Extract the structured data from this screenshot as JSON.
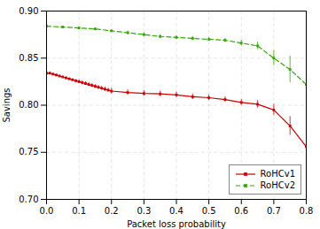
{
  "chart_data": {
    "type": "line",
    "xlabel": "Packet loss probability",
    "ylabel": "Savings",
    "xlim": [
      0,
      0.8
    ],
    "ylim": [
      0.7,
      0.9
    ],
    "xticks": [
      {
        "value": 0.0,
        "label": "0.0"
      },
      0.1,
      0.2,
      0.3,
      0.4,
      0.5,
      0.6,
      0.7,
      0.8
    ],
    "yticks": [
      {
        "value": 0.7,
        "label": "0.70"
      },
      0.75,
      {
        "value": 0.8,
        "label": "0.80"
      },
      0.85,
      {
        "value": 0.9,
        "label": "0.90"
      }
    ],
    "grid": true,
    "legend": "lower right",
    "series": [
      {
        "name": "RoHCv1",
        "color": "#cc0000",
        "marker": "square",
        "line_style": "solid",
        "x": [
          0.0,
          0.01,
          0.02,
          0.03,
          0.04,
          0.05,
          0.06,
          0.07,
          0.08,
          0.09,
          0.1,
          0.11,
          0.12,
          0.13,
          0.14,
          0.15,
          0.16,
          0.17,
          0.18,
          0.19,
          0.2,
          0.25,
          0.3,
          0.35,
          0.4,
          0.45,
          0.5,
          0.55,
          0.6,
          0.65,
          0.7,
          0.75,
          0.8
        ],
        "values": [
          0.834,
          0.834,
          0.833,
          0.832,
          0.831,
          0.83,
          0.829,
          0.828,
          0.827,
          0.826,
          0.825,
          0.824,
          0.823,
          0.822,
          0.821,
          0.82,
          0.819,
          0.818,
          0.817,
          0.816,
          0.815,
          0.8135,
          0.8125,
          0.812,
          0.811,
          0.809,
          0.808,
          0.806,
          0.803,
          0.801,
          0.795,
          0.778,
          0.756
        ],
        "yerr": [
          0.001,
          0.001,
          0.001,
          0.001,
          0.001,
          0.001,
          0.001,
          0.001,
          0.001,
          0.001,
          0.002,
          0.002,
          0.002,
          0.002,
          0.002,
          0.002,
          0.002,
          0.002,
          0.002,
          0.002,
          0.003,
          0.003,
          0.003,
          0.003,
          0.003,
          0.003,
          0.003,
          0.003,
          0.003,
          0.004,
          0.006,
          0.01,
          0.014
        ]
      },
      {
        "name": "RoHCv2",
        "color": "#33aa00",
        "marker": "square",
        "line_style": "dashed",
        "x": [
          0.0,
          0.05,
          0.1,
          0.15,
          0.2,
          0.25,
          0.3,
          0.35,
          0.4,
          0.45,
          0.5,
          0.55,
          0.6,
          0.65,
          0.7,
          0.75,
          0.8
        ],
        "values": [
          0.884,
          0.883,
          0.882,
          0.881,
          0.879,
          0.877,
          0.875,
          0.873,
          0.872,
          0.871,
          0.87,
          0.869,
          0.866,
          0.863,
          0.85,
          0.838,
          0.822
        ],
        "yerr": [
          0.001,
          0.001,
          0.001,
          0.001,
          0.001,
          0.002,
          0.002,
          0.002,
          0.002,
          0.002,
          0.002,
          0.002,
          0.003,
          0.004,
          0.008,
          0.014,
          0.02
        ]
      }
    ]
  }
}
